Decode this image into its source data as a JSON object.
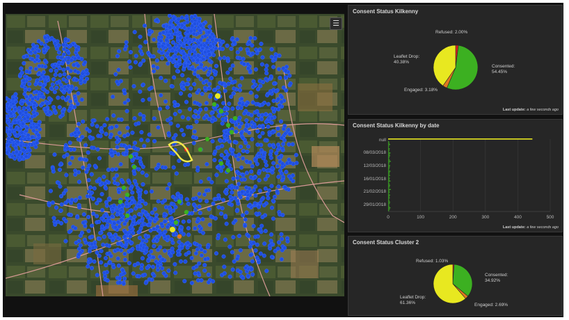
{
  "map": {
    "layer_button_icon": "list-icon",
    "colors": {
      "refused": "#e02020",
      "leaflet_drop": "#e8e820",
      "consented": "#3cb021",
      "engaged": "#e07820",
      "blue_dot": "#1f4fe0",
      "road": "#d99a96"
    }
  },
  "panels": {
    "pie1": {
      "title": "Consent Status Kilkenny",
      "footer_prefix": "Last update:",
      "footer_value": "a few seconds ago",
      "slices": [
        {
          "label": "Refused:",
          "pct": "2.00%",
          "value": 2.0,
          "color": "#e02020"
        },
        {
          "label": "Consented:",
          "pct": "54.45%",
          "value": 54.45,
          "color": "#3cb021"
        },
        {
          "label": "Engaged:",
          "pct": "3.18%",
          "value": 3.18,
          "color": "#e07820"
        },
        {
          "label": "Leaflet Drop:",
          "pct": "40.38%",
          "value": 40.38,
          "color": "#e8e820"
        }
      ]
    },
    "bar": {
      "title": "Consent Status Kilkenny by date",
      "footer_prefix": "Last update:",
      "footer_value": "a few seconds ago"
    },
    "pie2": {
      "title": "Consent Status Cluster 2",
      "slices": [
        {
          "label": "Refused:",
          "pct": "1.03%",
          "value": 1.03,
          "color": "#e02020"
        },
        {
          "label": "Consented:",
          "pct": "34.92%",
          "value": 34.92,
          "color": "#3cb021"
        },
        {
          "label": "Engaged:",
          "pct": "2.69%",
          "value": 2.69,
          "color": "#e07820"
        },
        {
          "label": "Leaflet Drop:",
          "pct": "61.36%",
          "value": 61.36,
          "color": "#e8e820"
        }
      ]
    }
  },
  "chart_data": {
    "type": "bar",
    "orientation": "horizontal",
    "categories": [
      "null",
      "08/03/2018",
      "12/03/2018",
      "16/01/2018",
      "21/02/2018",
      "29/01/2018"
    ],
    "y_tick_labels": [
      "null",
      "08/03/2018",
      "12/03/2018",
      "16/01/2018",
      "21/02/2018",
      "29/01/2018"
    ],
    "x_ticks": [
      "0",
      "100",
      "200",
      "300",
      "400",
      "500"
    ],
    "xlim": [
      0,
      500
    ],
    "null_value": 445,
    "null_color": "#e8e820",
    "bar_color": "#3cb021",
    "date_bar_values": [
      3,
      4,
      6,
      3,
      2,
      5,
      4,
      3,
      7,
      5,
      6,
      4,
      3,
      5,
      8,
      4,
      3,
      6,
      5,
      4,
      3,
      7,
      5,
      4,
      6,
      3,
      5,
      4,
      7,
      3,
      4,
      6,
      5,
      3,
      8,
      4,
      5,
      3,
      6,
      4,
      5,
      3,
      4,
      6,
      5,
      3,
      4,
      7,
      5,
      3
    ]
  }
}
